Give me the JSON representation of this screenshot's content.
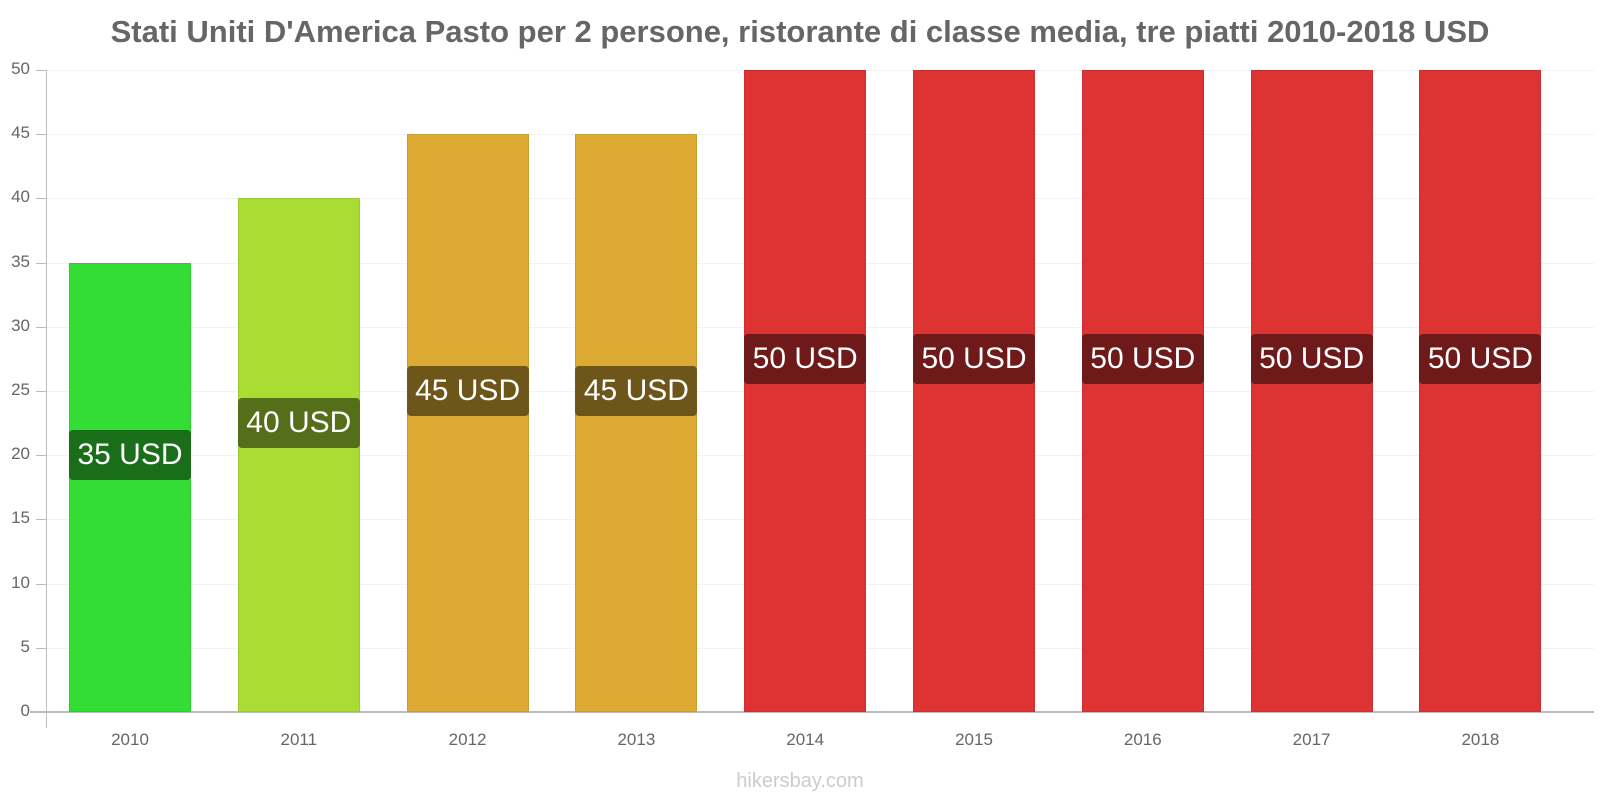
{
  "chart_data": {
    "type": "bar",
    "title": "Stati Uniti D'America Pasto per 2 persone, ristorante di classe media, tre piatti 2010-2018 USD",
    "categories": [
      "2010",
      "2011",
      "2012",
      "2013",
      "2014",
      "2015",
      "2016",
      "2017",
      "2018"
    ],
    "values": [
      35,
      40,
      45,
      45,
      50,
      50,
      50,
      50,
      50
    ],
    "value_labels": [
      "35 USD",
      "40 USD",
      "45 USD",
      "45 USD",
      "50 USD",
      "50 USD",
      "50 USD",
      "50 USD",
      "50 USD"
    ],
    "bar_colors": [
      "#33dd33",
      "#aadd33",
      "#ddaa33",
      "#ddaa33",
      "#dd3333",
      "#dd3333",
      "#dd3333",
      "#dd3333",
      "#dd3333"
    ],
    "label_colors": [
      "#1a6e1a",
      "#556e1a",
      "#6e551a",
      "#6e551a",
      "#6e1a1a",
      "#6e1a1a",
      "#6e1a1a",
      "#6e1a1a",
      "#6e1a1a"
    ],
    "xlabel": "",
    "ylabel": "",
    "ylim": [
      0,
      50
    ],
    "yticks": [
      "0",
      "5",
      "10",
      "15",
      "20",
      "25",
      "30",
      "35",
      "40",
      "45",
      "50"
    ],
    "grid": true,
    "legend": null
  },
  "footer": {
    "source": "hikersbay.com"
  }
}
